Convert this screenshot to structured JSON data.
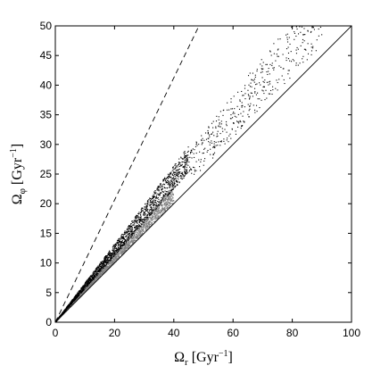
{
  "chart_data": {
    "type": "scatter",
    "xlim": [
      0,
      100
    ],
    "ylim": [
      0,
      50
    ],
    "x_ticks": [
      0,
      20,
      40,
      60,
      80,
      100
    ],
    "y_ticks": [
      0,
      5,
      10,
      15,
      20,
      25,
      30,
      35,
      40,
      45,
      50
    ],
    "xlabel": {
      "base": "Ω",
      "sub": "r",
      "unit_open": " [Gyr",
      "sup": "−1",
      "unit_close": "]"
    },
    "ylabel": {
      "base": "Ω",
      "sub": "φ",
      "unit_open": " [Gyr",
      "sup": "−1",
      "unit_close": "]"
    },
    "grid": false,
    "legend": "none",
    "lines": [
      {
        "style": "dashed",
        "x": [
          0,
          48.5
        ],
        "y": [
          0,
          50
        ]
      },
      {
        "style": "solid",
        "x": [
          0,
          100
        ],
        "y": [
          0,
          50
        ]
      }
    ],
    "series": [
      {
        "color": "#808080",
        "ratio_band": [
          0.5,
          0.58
        ],
        "x_range": [
          0,
          40
        ],
        "count": 2600
      },
      {
        "color": "#000000",
        "ratio_band": [
          0.56,
          0.66
        ],
        "x_range": [
          0,
          45
        ],
        "count": 2000
      },
      {
        "color": "#000000",
        "ratio_band": [
          0.52,
          0.64
        ],
        "x_range": [
          45,
          90
        ],
        "count": 450
      }
    ],
    "colors": {
      "axis": "#000000",
      "background": "#ffffff"
    }
  }
}
